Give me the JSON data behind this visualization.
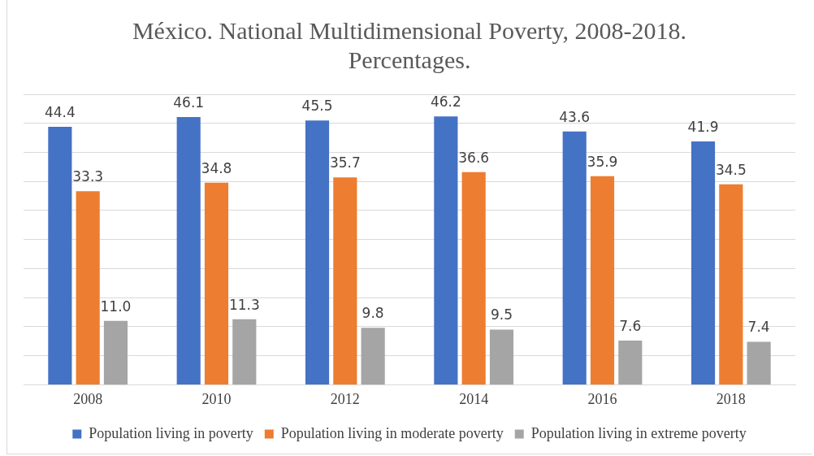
{
  "chart_data": {
    "type": "bar",
    "title": "México. National Multidimensional Poverty, 2008-2018. Percentages.",
    "categories": [
      "2008",
      "2010",
      "2012",
      "2014",
      "2016",
      "2018"
    ],
    "series": [
      {
        "name": "Population living in poverty",
        "color": "#4472c4",
        "values": [
          44.4,
          46.1,
          45.5,
          46.2,
          43.6,
          41.9
        ],
        "value_labels": [
          "44.4",
          "46.1",
          "45.5",
          "46.2",
          "43.6",
          "41.9"
        ]
      },
      {
        "name": "Population living in moderate poverty",
        "color": "#ed7d31",
        "values": [
          33.3,
          34.8,
          35.7,
          36.6,
          35.9,
          34.5
        ],
        "value_labels": [
          "33.3",
          "34.8",
          "35.7",
          "36.6",
          "35.9",
          "34.5"
        ]
      },
      {
        "name": "Population living in extreme poverty",
        "color": "#a5a5a5",
        "values": [
          11.0,
          11.3,
          9.8,
          9.5,
          7.6,
          7.4
        ],
        "value_labels": [
          "11.0",
          "11.3",
          "9.8",
          "9.5",
          "7.6",
          "7.4"
        ]
      }
    ],
    "ylim": [
      0,
      50
    ],
    "yticks": [
      0,
      5,
      10,
      15,
      20,
      25,
      30,
      35,
      40,
      45,
      50
    ],
    "tick_labels": "x",
    "grid": "y",
    "legend": "bottom"
  }
}
